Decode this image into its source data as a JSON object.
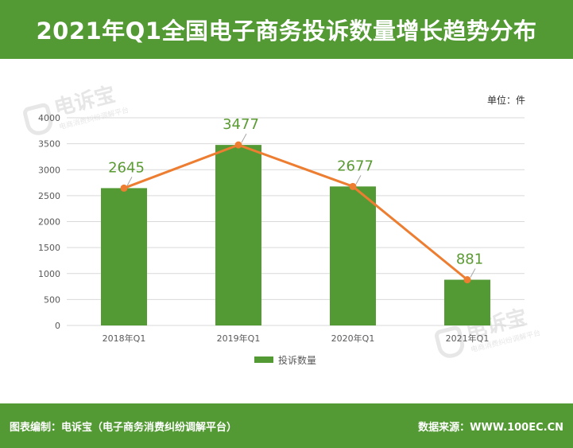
{
  "header": {
    "title": "2021年Q1全国电子商务投诉数量增长趋势分布"
  },
  "unit_label": "单位：件",
  "watermark": {
    "brand": "电诉宝",
    "tagline": "电商消费纠纷调解平台"
  },
  "chart_data": {
    "type": "bar",
    "categories": [
      "2018年Q1",
      "2019年Q1",
      "2020年Q1",
      "2021年Q1"
    ],
    "series": [
      {
        "name": "投诉数量",
        "values": [
          2645,
          3477,
          2677,
          881
        ]
      }
    ],
    "data_labels": [
      "2645",
      "3477",
      "2677",
      "881"
    ],
    "trend_line": {
      "values": [
        2645,
        3477,
        2677,
        881
      ]
    },
    "yticks": [
      "0",
      "500",
      "1000",
      "1500",
      "2000",
      "2500",
      "3000",
      "3500",
      "4000"
    ],
    "ylim": [
      0,
      4000
    ],
    "grid": true,
    "legend": "bottom-center",
    "colors": {
      "bar": "#549a34",
      "line": "#ed7d31",
      "label": "#5a9a32",
      "grid": "#d9d9d9"
    }
  },
  "footer": {
    "left": "图表编制：电诉宝（电子商务消费纠纷调解平台）",
    "right": "数据来源：WWW.100EC.CN"
  }
}
